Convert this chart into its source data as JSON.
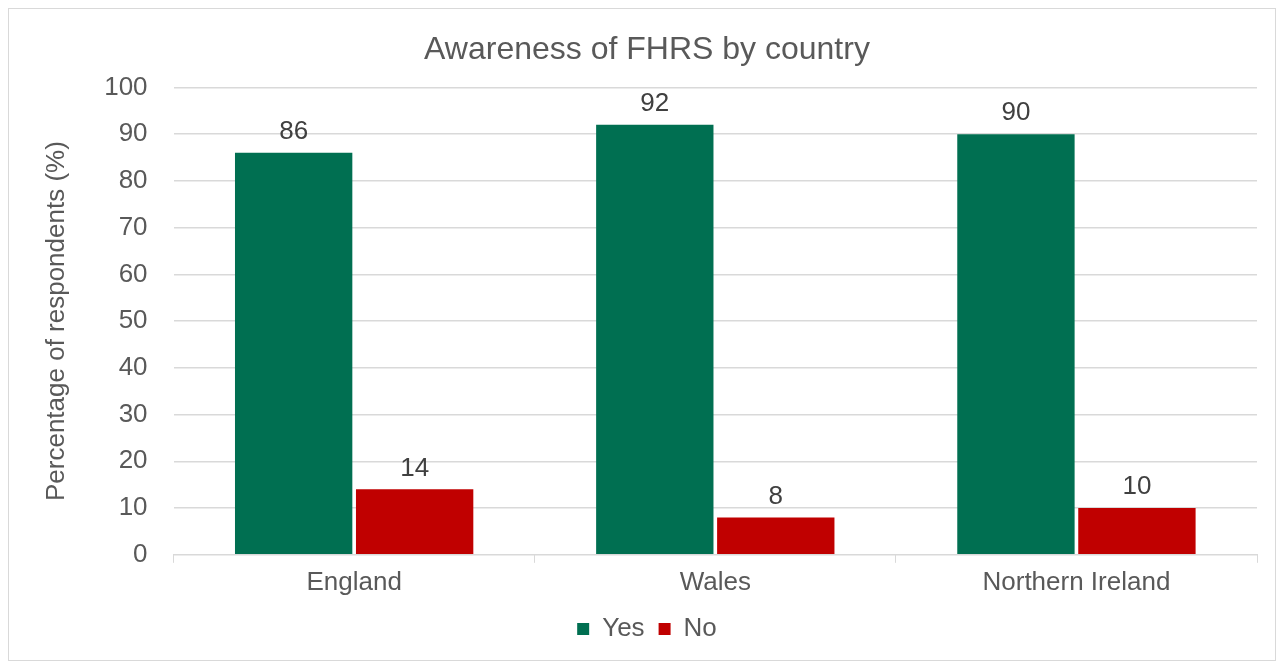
{
  "chart_data": {
    "type": "bar",
    "title": "Awareness of FHRS by country",
    "ylabel": "Percentage of respondents (%)",
    "categories": [
      "England",
      "Wales",
      "Northern Ireland"
    ],
    "series": [
      {
        "name": "Yes",
        "color": "#006f51",
        "values": [
          86,
          92,
          90
        ]
      },
      {
        "name": "No",
        "color": "#c00000",
        "values": [
          14,
          8,
          10
        ]
      }
    ],
    "ylim": [
      0,
      100
    ],
    "yticks": [
      0,
      10,
      20,
      30,
      40,
      50,
      60,
      70,
      80,
      90,
      100
    ],
    "grid": "y",
    "legend": "bottom",
    "data_labels": true
  }
}
